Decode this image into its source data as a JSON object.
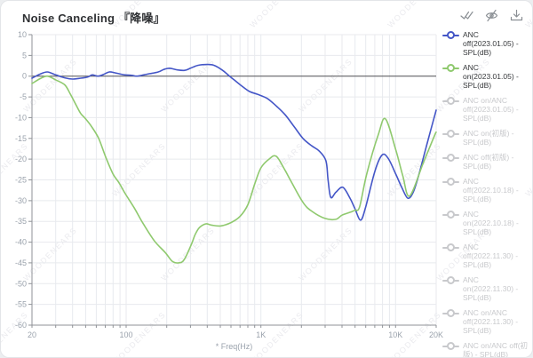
{
  "card": {
    "title": "Noise Canceling 『降噪』"
  },
  "toolbar": {
    "icons": [
      "select-all-icon",
      "toggle-visibility-icon",
      "download-icon"
    ]
  },
  "watermark": {
    "text": "WOODENEARS"
  },
  "colors": {
    "anc_off_blue": "#4456c7",
    "anc_on_green": "#8fc96e",
    "inactive_gray": "#c8c9cc",
    "grid": "#e8eaee",
    "zero_line": "#4e4e52",
    "axis": "#8f9297",
    "tick_text": "#9aa2ac"
  },
  "legend": {
    "items": [
      {
        "label": "ANC off(2023.01.05) - SPL(dB)",
        "active": true,
        "color": "#4456c7"
      },
      {
        "label": "ANC on(2023.01.05) - SPL(dB)",
        "active": true,
        "color": "#8fc96e"
      },
      {
        "label": "ANC on/ANC off(2023.01.05) - SPL(dB)",
        "active": false,
        "color": "#c8c9cc"
      },
      {
        "label": "ANC on(初版) - SPL(dB)",
        "active": false,
        "color": "#c8c9cc"
      },
      {
        "label": "ANC off(初版) - SPL(dB)",
        "active": false,
        "color": "#c8c9cc"
      },
      {
        "label": "ANC off(2022.10.18) - SPL(dB)",
        "active": false,
        "color": "#c8c9cc"
      },
      {
        "label": "ANC on(2022.10.18) - SPL(dB)",
        "active": false,
        "color": "#c8c9cc"
      },
      {
        "label": "ANC off(2022.11.30) - SPL(dB)",
        "active": false,
        "color": "#c8c9cc"
      },
      {
        "label": "ANC on(2022.11.30) - SPL(dB)",
        "active": false,
        "color": "#c8c9cc"
      },
      {
        "label": "ANC on/ANC off(2022.11.30) - SPL(dB)",
        "active": false,
        "color": "#c8c9cc"
      },
      {
        "label": "ANC on/ANC off(初版) - SPL(dB)",
        "active": false,
        "color": "#c8c9cc"
      }
    ]
  },
  "chart_data": {
    "type": "line",
    "title": "Noise Canceling 『降噪』",
    "xlabel": "* Freq(Hz)",
    "ylabel": "SPL(dB)",
    "x_axis": {
      "scale": "log",
      "min": 20,
      "max": 20000,
      "ticks": [
        {
          "value": 20,
          "label": "20"
        },
        {
          "value": 100,
          "label": "100"
        },
        {
          "value": 1000,
          "label": "1K"
        },
        {
          "value": 10000,
          "label": "10K"
        },
        {
          "value": 20000,
          "label": "20K"
        }
      ],
      "gridlines": [
        20,
        30,
        40,
        50,
        60,
        70,
        80,
        90,
        100,
        200,
        300,
        400,
        500,
        600,
        700,
        800,
        900,
        1000,
        2000,
        3000,
        4000,
        5000,
        6000,
        7000,
        8000,
        9000,
        10000,
        20000
      ]
    },
    "y_axis": {
      "min": -60,
      "max": 10,
      "tick_step": 5,
      "ticks": [
        10,
        5,
        0,
        -5,
        -10,
        -15,
        -20,
        -25,
        -30,
        -35,
        -40,
        -45,
        -50,
        -55,
        -60
      ],
      "zero_line": 0
    },
    "grid": true,
    "legend_position": "right",
    "series": [
      {
        "name": "ANC off(2023.01.05) - SPL(dB)",
        "color": "#4456c7",
        "points": [
          [
            20,
            -0.5
          ],
          [
            23,
            0.5
          ],
          [
            26,
            1.0
          ],
          [
            30,
            0.3
          ],
          [
            35,
            -0.4
          ],
          [
            40,
            -0.7
          ],
          [
            46,
            -0.5
          ],
          [
            52,
            -0.2
          ],
          [
            56,
            0.3
          ],
          [
            62,
            0.0
          ],
          [
            68,
            0.4
          ],
          [
            75,
            1.0
          ],
          [
            85,
            0.7
          ],
          [
            98,
            0.3
          ],
          [
            110,
            0.2
          ],
          [
            120,
            0.0
          ],
          [
            135,
            0.3
          ],
          [
            150,
            0.6
          ],
          [
            173,
            1.0
          ],
          [
            190,
            1.6
          ],
          [
            210,
            1.9
          ],
          [
            240,
            1.5
          ],
          [
            272,
            1.4
          ],
          [
            300,
            1.9
          ],
          [
            340,
            2.6
          ],
          [
            400,
            2.8
          ],
          [
            450,
            2.6
          ],
          [
            520,
            1.4
          ],
          [
            585,
            0.0
          ],
          [
            650,
            -1.2
          ],
          [
            710,
            -2.2
          ],
          [
            824,
            -3.7
          ],
          [
            950,
            -4.4
          ],
          [
            1117,
            -5.4
          ],
          [
            1300,
            -7.2
          ],
          [
            1513,
            -9.3
          ],
          [
            1750,
            -12.0
          ],
          [
            2050,
            -15.0
          ],
          [
            2386,
            -16.8
          ],
          [
            2700,
            -18.0
          ],
          [
            3040,
            -20.4
          ],
          [
            3150,
            -25.0
          ],
          [
            3300,
            -29.2
          ],
          [
            3600,
            -28.0
          ],
          [
            4060,
            -26.8
          ],
          [
            4600,
            -29.5
          ],
          [
            5000,
            -32.0
          ],
          [
            5500,
            -34.7
          ],
          [
            6000,
            -31.5
          ],
          [
            7000,
            -23.0
          ],
          [
            7940,
            -19.0
          ],
          [
            8800,
            -19.8
          ],
          [
            10000,
            -23.5
          ],
          [
            11000,
            -26.5
          ],
          [
            12300,
            -29.4
          ],
          [
            13500,
            -28.0
          ],
          [
            14800,
            -24.0
          ],
          [
            17200,
            -16.0
          ],
          [
            20000,
            -8.2
          ]
        ]
      },
      {
        "name": "ANC on(2023.01.05) - SPL(dB)",
        "color": "#8fc96e",
        "points": [
          [
            20,
            -1.8
          ],
          [
            23,
            -0.6
          ],
          [
            26,
            0.0
          ],
          [
            30,
            -0.9
          ],
          [
            35,
            -2.1
          ],
          [
            38.5,
            -4.3
          ],
          [
            42.7,
            -7.1
          ],
          [
            46,
            -9.0
          ],
          [
            50,
            -10.3
          ],
          [
            55.5,
            -12.2
          ],
          [
            62.5,
            -15.0
          ],
          [
            70.5,
            -19.5
          ],
          [
            80,
            -23.6
          ],
          [
            88.6,
            -25.7
          ],
          [
            98.4,
            -28.3
          ],
          [
            114.6,
            -31.7
          ],
          [
            133,
            -35.4
          ],
          [
            162,
            -39.7
          ],
          [
            195,
            -42.5
          ],
          [
            220,
            -44.6
          ],
          [
            245,
            -45.0
          ],
          [
            270,
            -44.2
          ],
          [
            307,
            -40.3
          ],
          [
            325,
            -38.2
          ],
          [
            350,
            -36.5
          ],
          [
            390,
            -35.6
          ],
          [
            430,
            -35.9
          ],
          [
            500,
            -36.1
          ],
          [
            600,
            -35.3
          ],
          [
            700,
            -33.8
          ],
          [
            800,
            -31.0
          ],
          [
            900,
            -26.0
          ],
          [
            1000,
            -22.1
          ],
          [
            1150,
            -20.0
          ],
          [
            1300,
            -19.3
          ],
          [
            1500,
            -22.5
          ],
          [
            1634,
            -24.7
          ],
          [
            2050,
            -30.4
          ],
          [
            2400,
            -32.6
          ],
          [
            3000,
            -34.3
          ],
          [
            3600,
            -34.5
          ],
          [
            4000,
            -33.5
          ],
          [
            4600,
            -32.8
          ],
          [
            5000,
            -32.3
          ],
          [
            5400,
            -31.5
          ],
          [
            6100,
            -23.6
          ],
          [
            7450,
            -14.0
          ],
          [
            8400,
            -10.3
          ],
          [
            10000,
            -17.6
          ],
          [
            11300,
            -24.0
          ],
          [
            12700,
            -28.9
          ],
          [
            16000,
            -21.0
          ],
          [
            19400,
            -14.4
          ],
          [
            20000,
            -13.5
          ]
        ]
      }
    ]
  }
}
